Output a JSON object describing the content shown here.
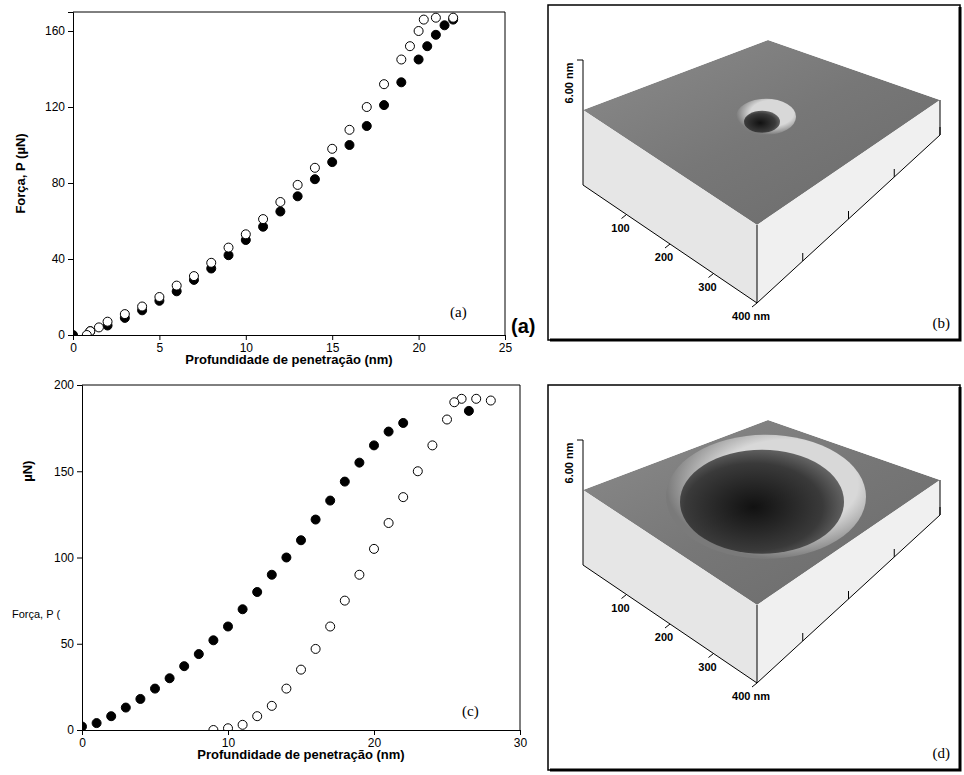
{
  "chart_data": [
    {
      "type": "scatter",
      "panel_label": "(a)",
      "annotations": [
        "(a)"
      ],
      "xlabel": "Profundidade de penetração (nm)",
      "ylabel": "Força, P (µN)",
      "xlim": [
        0,
        25
      ],
      "xticks": [
        0,
        5,
        10,
        15,
        20,
        25
      ],
      "ylim": [
        0,
        170
      ],
      "yticks": [
        0,
        40,
        80,
        120,
        160
      ],
      "series": [
        {
          "marker": "circle",
          "color": "#000000",
          "x": [
            0,
            1,
            2,
            3,
            4,
            5,
            6,
            7,
            8,
            9,
            10,
            11,
            12,
            13,
            14,
            15,
            16,
            17,
            18,
            19,
            20,
            20.5,
            21,
            21.5,
            22
          ],
          "values": [
            0,
            2,
            5,
            9,
            13,
            18,
            23,
            29,
            35,
            42,
            50,
            57,
            65,
            73,
            82,
            91,
            100,
            110,
            121,
            133,
            145,
            152,
            158,
            163,
            166
          ]
        },
        {
          "marker": "circle",
          "color": "#ffffff",
          "x": [
            22,
            21,
            20.3,
            20,
            19.5,
            19,
            18,
            17,
            16,
            15,
            14,
            13,
            12,
            11,
            10,
            9,
            8,
            7,
            6,
            5,
            4,
            3,
            2,
            1.5,
            1,
            0.8
          ],
          "values": [
            167,
            167,
            166,
            160,
            152,
            145,
            132,
            120,
            108,
            98,
            88,
            79,
            70,
            61,
            53,
            46,
            38,
            31,
            26,
            20,
            15,
            11,
            7,
            4,
            2,
            0
          ]
        }
      ]
    },
    {
      "type": "scatter",
      "panel_label": "(c)",
      "annotations": [
        "Força, P ("
      ],
      "xlabel": "Profundidade de penetração (nm)",
      "ylabel": "µN)",
      "xlim": [
        0,
        30
      ],
      "xticks": [
        0,
        10,
        20,
        30
      ],
      "ylim": [
        0,
        200
      ],
      "yticks": [
        0,
        50,
        100,
        150,
        200
      ],
      "series": [
        {
          "marker": "circle",
          "color": "#000000",
          "x": [
            0,
            1,
            2,
            3,
            4,
            5,
            6,
            7,
            8,
            9,
            10,
            11,
            12,
            13,
            14,
            15,
            16,
            17,
            18,
            19,
            20,
            21,
            22,
            26.5
          ],
          "values": [
            2,
            4,
            8,
            13,
            18,
            24,
            30,
            37,
            44,
            52,
            60,
            70,
            80,
            90,
            100,
            110,
            122,
            133,
            144,
            155,
            165,
            173,
            178,
            185
          ]
        },
        {
          "marker": "circle",
          "color": "#ffffff",
          "x": [
            28,
            27,
            26,
            25.5,
            25,
            24,
            23,
            22,
            21,
            20,
            19,
            18,
            17,
            16,
            15,
            14,
            13,
            12,
            11,
            10,
            9
          ],
          "values": [
            191,
            192,
            192,
            190,
            180,
            165,
            150,
            135,
            120,
            105,
            90,
            75,
            60,
            47,
            35,
            24,
            14,
            8,
            3,
            1,
            0
          ]
        }
      ]
    }
  ],
  "afm_images": [
    {
      "panel_label": "(b)",
      "z_label": "6.00 nm",
      "xlim": [
        0,
        400
      ],
      "ticks": [
        100,
        200,
        300,
        {
          "value": 400,
          "label": "400 nm"
        }
      ]
    },
    {
      "panel_label": "(d)",
      "z_label": "6.00 nm",
      "xlim": [
        0,
        400
      ],
      "ticks": [
        100,
        200,
        300,
        {
          "value": 400,
          "label": "400 nm"
        }
      ]
    }
  ]
}
